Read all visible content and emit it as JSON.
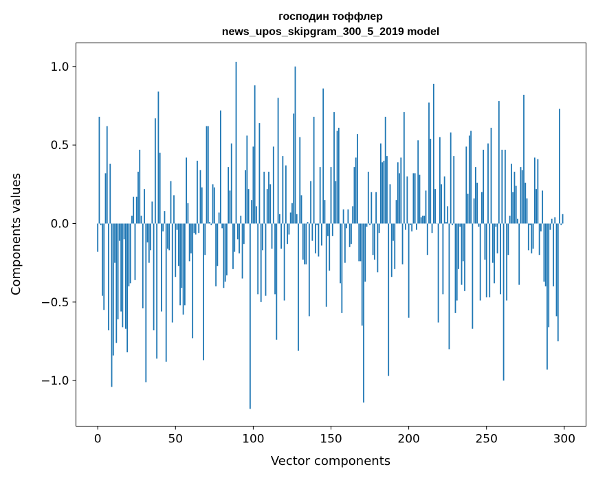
{
  "chart_data": {
    "type": "bar",
    "title": "господин тоффлер",
    "subtitle": "news_upos_skipgram_300_5_2019 model",
    "xlabel": "Vector components",
    "ylabel": "Components values",
    "xlim": [
      -14,
      314
    ],
    "ylim": [
      -1.29,
      1.15
    ],
    "xticks": [
      0,
      50,
      100,
      150,
      200,
      250,
      300
    ],
    "xtick_labels": [
      "0",
      "50",
      "100",
      "150",
      "200",
      "250",
      "300"
    ],
    "yticks": [
      -1.0,
      -0.5,
      0.0,
      0.5,
      1.0
    ],
    "ytick_labels": [
      "−1.0",
      "−0.5",
      "0.0",
      "0.5",
      "1.0"
    ],
    "grid": false,
    "color": "#1f77b4",
    "values": [
      -0.18,
      0.68,
      -0.01,
      -0.46,
      -0.55,
      0.32,
      0.62,
      -0.68,
      0.38,
      -1.04,
      -0.84,
      -0.25,
      -0.76,
      -0.61,
      -0.11,
      -0.56,
      -0.66,
      -0.1,
      -0.67,
      -0.82,
      -0.4,
      -0.38,
      0.05,
      0.17,
      -0.36,
      0.17,
      0.33,
      0.47,
      0.05,
      -0.54,
      0.22,
      -1.01,
      -0.12,
      -0.25,
      -0.17,
      0.14,
      -0.68,
      0.67,
      -0.86,
      0.84,
      0.45,
      -0.56,
      -0.05,
      0.08,
      -0.88,
      -0.16,
      -0.17,
      0.27,
      -0.63,
      0.18,
      -0.34,
      -0.04,
      -0.27,
      -0.52,
      -0.41,
      -0.58,
      -0.52,
      0.42,
      0.13,
      -0.24,
      -0.19,
      -0.73,
      -0.06,
      -0.07,
      0.4,
      -0.06,
      0.34,
      0.23,
      -0.87,
      -0.2,
      0.62,
      0.62,
      0.01,
      -0.01,
      0.25,
      0.23,
      -0.4,
      -0.27,
      0.07,
      0.72,
      -0.03,
      -0.41,
      -0.37,
      -0.33,
      0.36,
      0.21,
      0.51,
      -0.29,
      -0.18,
      1.03,
      -0.1,
      -0.19,
      0.05,
      -0.35,
      -0.13,
      0.34,
      0.56,
      0.22,
      -1.18,
      0.15,
      0.49,
      0.88,
      0.11,
      -0.45,
      0.64,
      -0.5,
      -0.17,
      0.33,
      -0.46,
      0.22,
      0.33,
      0.25,
      -0.16,
      0.49,
      -0.45,
      -0.74,
      0.8,
      0.06,
      -0.16,
      0.43,
      -0.49,
      0.37,
      -0.13,
      -0.07,
      0.07,
      0.13,
      0.7,
      1.0,
      0.06,
      -0.81,
      0.55,
      0.18,
      -0.23,
      -0.26,
      -0.26,
      0.01,
      -0.59,
      0.27,
      -0.11,
      0.68,
      -0.19,
      -0.01,
      -0.21,
      0.36,
      -0.14,
      0.86,
      0.15,
      -0.53,
      -0.08,
      -0.3,
      0.36,
      -0.08,
      0.71,
      0.27,
      0.59,
      0.61,
      -0.38,
      -0.57,
      0.09,
      -0.25,
      -0.03,
      0.09,
      -0.15,
      -0.13,
      0.11,
      0.36,
      0.42,
      0.57,
      -0.24,
      -0.24,
      -0.65,
      -1.14,
      -0.37,
      -0.02,
      0.33,
      -0.01,
      0.2,
      -0.2,
      -0.23,
      0.2,
      -0.31,
      -0.06,
      0.51,
      0.39,
      0.4,
      0.68,
      0.43,
      -0.97,
      0.25,
      -0.34,
      -0.11,
      -0.29,
      0.15,
      0.39,
      0.32,
      0.42,
      -0.26,
      0.71,
      -0.04,
      0.3,
      -0.6,
      -0.01,
      -0.05,
      0.32,
      0.32,
      -0.04,
      0.53,
      0.31,
      0.04,
      0.05,
      0.05,
      0.21,
      -0.2,
      0.77,
      0.54,
      -0.06,
      0.89,
      0.22,
      0.0,
      -0.63,
      0.55,
      0.25,
      -0.45,
      0.3,
      0.01,
      0.11,
      -0.8,
      0.58,
      -0.01,
      0.43,
      -0.57,
      -0.49,
      -0.29,
      -0.02,
      -0.39,
      -0.24,
      -0.43,
      0.49,
      0.19,
      0.56,
      0.59,
      -0.67,
      0.16,
      0.36,
      0.26,
      -0.02,
      -0.49,
      0.2,
      0.47,
      -0.23,
      -0.47,
      0.51,
      -0.47,
      0.61,
      -0.25,
      -0.38,
      -0.02,
      -0.19,
      0.78,
      -0.45,
      0.47,
      -1.0,
      0.47,
      -0.49,
      -0.2,
      0.05,
      0.38,
      0.2,
      0.33,
      0.24,
      0.03,
      -0.39,
      0.36,
      0.34,
      0.82,
      0.26,
      0.16,
      -0.17,
      -0.01,
      -0.19,
      -0.16,
      0.42,
      0.22,
      0.41,
      -0.2,
      -0.05,
      0.21,
      -0.37,
      -0.4,
      -0.93,
      -0.66,
      -0.04,
      0.03,
      -0.4,
      0.04,
      -0.59,
      -0.75,
      0.73,
      -0.01,
      0.06
    ]
  }
}
